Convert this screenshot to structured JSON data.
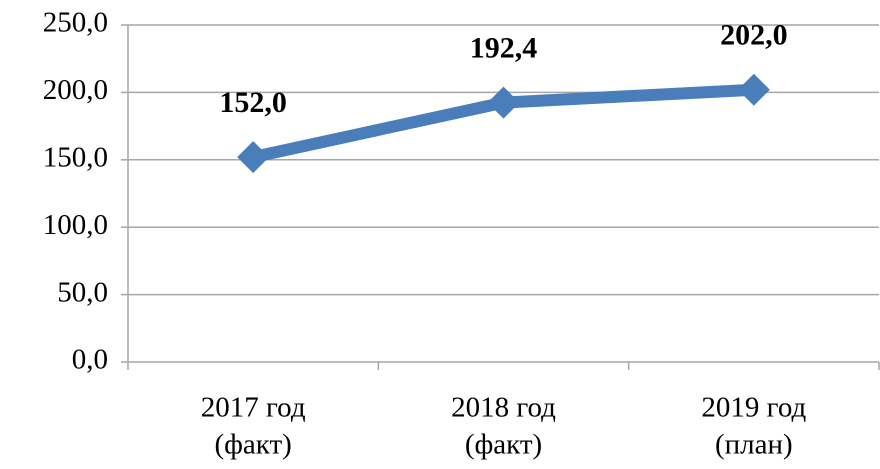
{
  "chart_data": {
    "type": "line",
    "categories": [
      [
        "2017 год",
        "(факт)"
      ],
      [
        "2018 год",
        "(факт)"
      ],
      [
        "2019 год",
        "(план)"
      ]
    ],
    "values": [
      152.0,
      192.4,
      202.0
    ],
    "value_labels": [
      "152,0",
      "192,4",
      "202,0"
    ],
    "color": "#4a7ebb",
    "ylim": [
      0,
      250
    ],
    "yticks": [
      {
        "value": 0,
        "label": "0,0"
      },
      {
        "value": 50,
        "label": "50,0"
      },
      {
        "value": 100,
        "label": "100,0"
      },
      {
        "value": 150,
        "label": "150,0"
      },
      {
        "value": 200,
        "label": "200,0"
      },
      {
        "value": 250,
        "label": "250,0"
      }
    ],
    "grid": true
  }
}
